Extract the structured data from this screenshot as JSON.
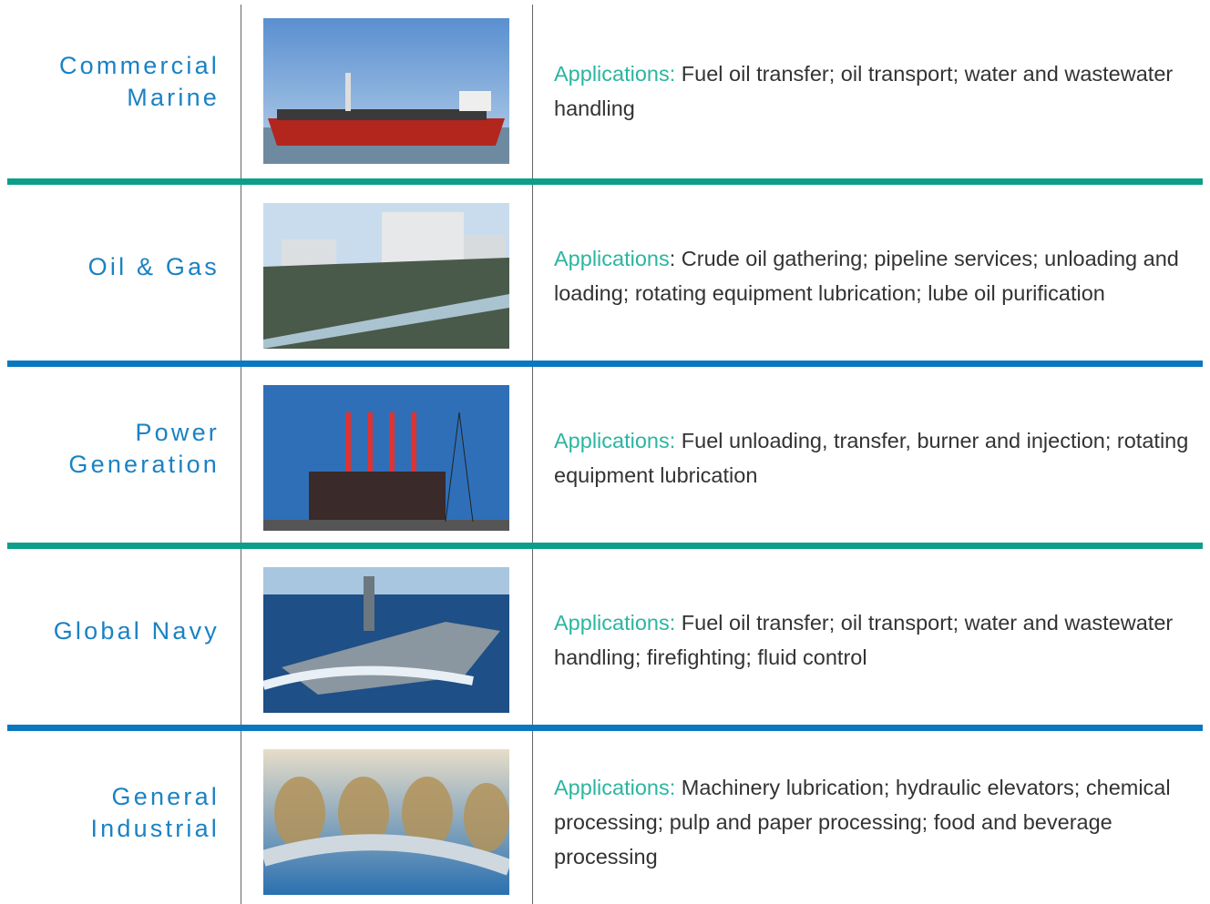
{
  "rows": [
    {
      "name": [
        "Commercial",
        "Marine"
      ],
      "label": "Applications:",
      "text": " Fuel oil transfer; oil transport; water and wastewater handling"
    },
    {
      "name": [
        "Oil & Gas"
      ],
      "label": "Applications",
      "text": ": Crude oil gathering; pipeline services; unloading and loading; rotating equipment lubrication; lube oil purification"
    },
    {
      "name": [
        "Power",
        "Generation"
      ],
      "label": "Applications:",
      "text": " Fuel unloading, transfer, burner and injection; rotating equipment lubrication"
    },
    {
      "name": [
        "Global Navy"
      ],
      "label": "Applications:",
      "text": " Fuel oil transfer; oil transport; water and wastewater handling; firefighting; fluid control"
    },
    {
      "name": [
        "General",
        "Industrial"
      ],
      "label": "Applications:",
      "text": " Machinery lubrication; hydraulic elevators; chemical processing; pulp and paper processing; food and beverage processing"
    }
  ]
}
